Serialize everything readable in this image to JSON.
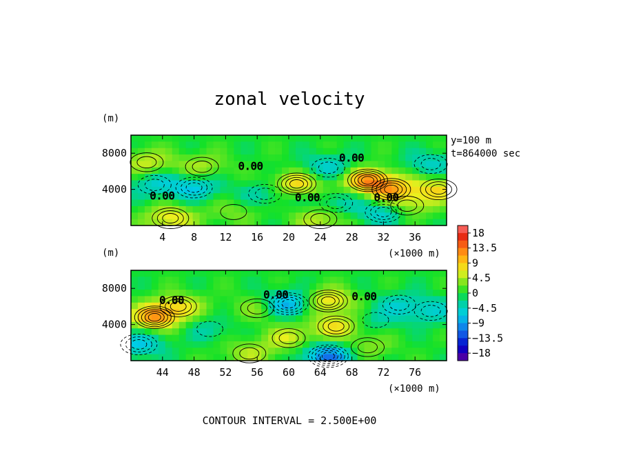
{
  "chart_data": {
    "type": "heatmap",
    "title": "zonal velocity",
    "y_unit_label": "(m)",
    "x_unit_label": "(×1000 m)",
    "info_lines": [
      "y=100 m",
      "t=864000 sec"
    ],
    "footer": "CONTOUR INTERVAL = 2.500E+00",
    "colorbar": {
      "min": -20.25,
      "max": 20.25,
      "tick_labels": [
        "18",
        "13.5",
        "9",
        "4.5",
        "0",
        "−4.5",
        "−9",
        "−13.5",
        "−18"
      ],
      "tick_values": [
        18,
        13.5,
        9,
        4.5,
        0,
        -4.5,
        -9,
        -13.5,
        -18
      ]
    },
    "panels": [
      {
        "xlim": [
          0,
          40
        ],
        "ylim": [
          0,
          10000
        ],
        "x_ticks": [
          4,
          8,
          12,
          16,
          20,
          24,
          28,
          32,
          36
        ],
        "y_ticks": [
          4000,
          8000
        ],
        "contour_labels": [
          "0.00",
          "0.00",
          "0.00",
          "0.00",
          "0.00"
        ],
        "features": [
          {
            "x": 8,
            "y": 4200,
            "amp": -7
          },
          {
            "x": 3,
            "y": 4500,
            "amp": -5
          },
          {
            "x": 21,
            "y": 4600,
            "amp": 9
          },
          {
            "x": 30,
            "y": 5000,
            "amp": 12
          },
          {
            "x": 33,
            "y": 4000,
            "amp": 9
          },
          {
            "x": 32,
            "y": 1500,
            "amp": -7
          },
          {
            "x": 39,
            "y": 4000,
            "amp": 8
          },
          {
            "x": 13,
            "y": 1500,
            "amp": 3
          },
          {
            "x": 17,
            "y": 3500,
            "amp": -4
          },
          {
            "x": 5,
            "y": 800,
            "amp": 8
          },
          {
            "x": 24,
            "y": 700,
            "amp": 6
          },
          {
            "x": 2,
            "y": 7000,
            "amp": 6
          },
          {
            "x": 9,
            "y": 6500,
            "amp": 5
          },
          {
            "x": 25,
            "y": 6400,
            "amp": -6
          },
          {
            "x": 38,
            "y": 6800,
            "amp": -5
          },
          {
            "x": 35,
            "y": 2200,
            "amp": 6
          },
          {
            "x": 26,
            "y": 2500,
            "amp": -4
          }
        ]
      },
      {
        "xlim": [
          40,
          80
        ],
        "ylim": [
          0,
          10000
        ],
        "x_ticks": [
          44,
          48,
          52,
          56,
          60,
          64,
          68,
          72,
          76
        ],
        "y_ticks": [
          4000,
          8000
        ],
        "contour_labels": [
          "0.00",
          "0.00",
          "0.00"
        ],
        "features": [
          {
            "x": 43,
            "y": 4800,
            "amp": 12
          },
          {
            "x": 46,
            "y": 6000,
            "amp": 7
          },
          {
            "x": 41,
            "y": 1800,
            "amp": -7
          },
          {
            "x": 60,
            "y": 6300,
            "amp": -10
          },
          {
            "x": 65,
            "y": 6600,
            "amp": 9
          },
          {
            "x": 65,
            "y": 500,
            "amp": -12
          },
          {
            "x": 66,
            "y": 3800,
            "amp": 8
          },
          {
            "x": 60,
            "y": 2500,
            "amp": 6
          },
          {
            "x": 55,
            "y": 800,
            "amp": 5
          },
          {
            "x": 70,
            "y": 1500,
            "amp": 4
          },
          {
            "x": 78,
            "y": 5500,
            "amp": -5
          },
          {
            "x": 50,
            "y": 3500,
            "amp": -3
          },
          {
            "x": 74,
            "y": 6200,
            "amp": -4
          },
          {
            "x": 56,
            "y": 5800,
            "amp": 4
          },
          {
            "x": 71,
            "y": 4500,
            "amp": -3
          }
        ]
      }
    ]
  }
}
